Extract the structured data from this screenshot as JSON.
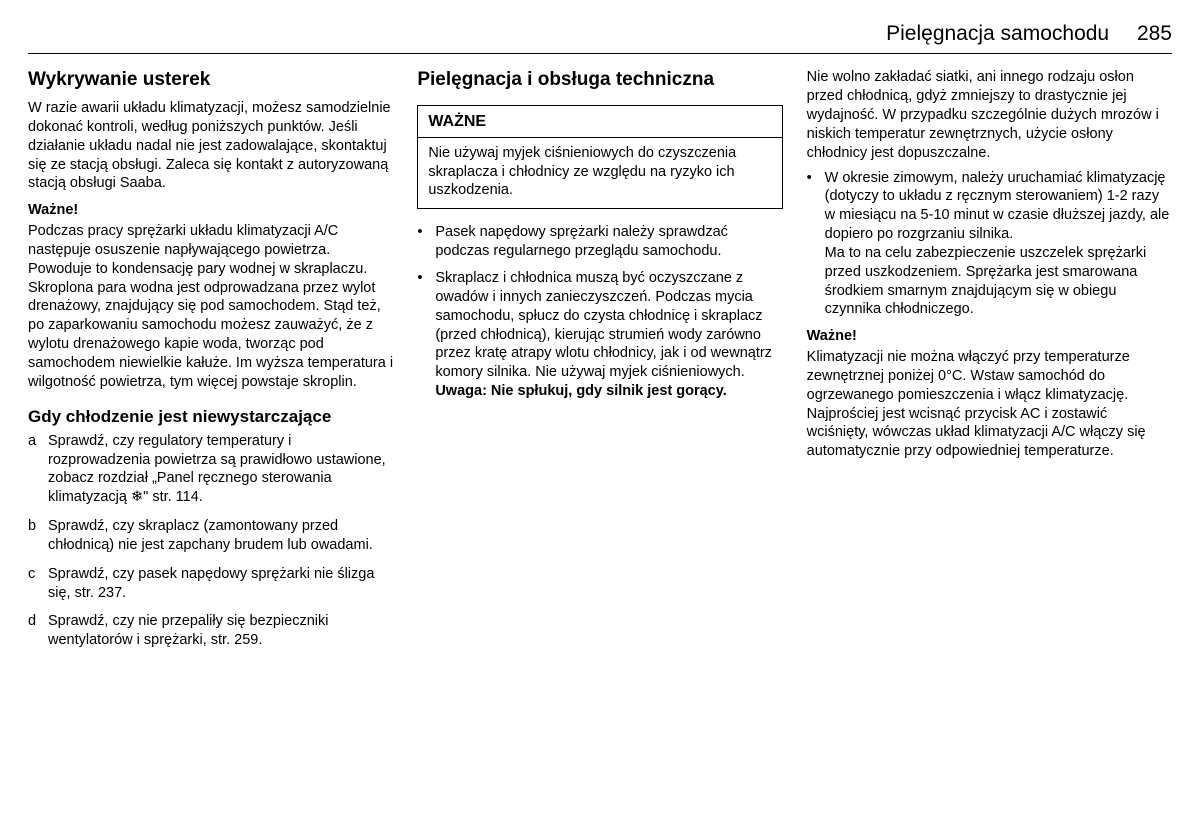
{
  "header": {
    "title": "Pielęgnacja samochodu",
    "page": "285"
  },
  "col1": {
    "h1": "Wykrywanie usterek",
    "p1": "W razie awarii układu klimatyzacji, możesz samodzielnie dokonać kontroli, według poniższych punktów. Jeśli działanie układu nadal nie jest zadowalające, skontaktuj się ze stacją obsługi. Zaleca się kontakt z autoryzowaną stacją obsługi Saaba.",
    "wazne1_label": "Ważne!",
    "wazne1_body": "Podczas pracy sprężarki układu klimatyzacji A/C następuje osuszenie napływającego powietrza. Powoduje to kondensację pary wodnej w skraplaczu. Skroplona para wodna jest odprowadzana przez wylot drenażowy, znajdujący się pod samochodem. Stąd też, po zaparkowaniu samochodu możesz zauważyć, że z wylotu drenażowego kapie woda, tworząc pod samochodem niewielkie kałuże. Im wyższa temperatura i wilgotność powietrza, tym więcej powstaje skroplin.",
    "h2": "Gdy chłodzenie jest niewystarczające",
    "items": [
      {
        "m": "a",
        "t": "Sprawdź, czy regulatory temperatury i rozprowadzenia powietrza są prawidłowo ustawione, zobacz rozdział „Panel ręcznego sterowania klimatyzacją ❄\" str. 114."
      },
      {
        "m": "b",
        "t": "Sprawdź, czy skraplacz (zamontowany przed chłodnicą) nie jest zapchany brudem lub owadami."
      },
      {
        "m": "c",
        "t": "Sprawdź, czy pasek napędowy sprężarki nie ślizga się, str. 237."
      },
      {
        "m": "d",
        "t": "Sprawdź, czy nie przepaliły się bezpieczniki wentylatorów i sprężarki, str. 259."
      }
    ]
  },
  "col2": {
    "h1": "Pielęgnacja i obsługa techniczna",
    "box": {
      "title": "WAŻNE",
      "body": "Nie używaj myjek ciśnieniowych do czyszczenia skraplacza i chłodnicy ze względu na ryzyko ich uszkodzenia."
    },
    "bullets": [
      {
        "t": "Pasek napędowy sprężarki należy sprawdzać podczas regularnego przeglądu samochodu."
      },
      {
        "t": "Skraplacz i chłodnica muszą być oczyszczane z owadów i innych zanieczyszczeń. Podczas mycia samochodu, spłucz do czysta chłodnicę i skraplacz (przed chłodnicą), kierując strumień wody zarówno przez kratę atrapy wlotu chłodnicy, jak i od wewnątrz komory silnika. Nie używaj myjek ciśnieniowych.",
        "bold": "Uwaga: Nie spłukuj, gdy silnik jest gorący."
      }
    ]
  },
  "col3": {
    "p1": "Nie wolno zakładać siatki, ani innego rodzaju osłon przed chłodnicą, gdyż zmniejszy to drastycznie jej wydajność. W przypadku szczególnie dużych mrozów i niskich temperatur zewnętrznych, użycie osłony chłodnicy jest dopuszczalne.",
    "bullets": [
      {
        "t": "W okresie zimowym, należy uruchamiać klimatyzację (dotyczy to układu z ręcznym sterowaniem) 1-2 razy w miesiącu na 5-10 minut w czasie dłuższej jazdy, ale dopiero po rozgrzaniu silnika.\nMa to na celu zabezpieczenie uszczelek sprężarki przed uszkodzeniem. Sprężarka jest smarowana środkiem smarnym znajdującym się w obiegu czynnika chłodniczego."
      }
    ],
    "wazne_label": "Ważne!",
    "wazne_body": "Klimatyzacji nie można włączyć przy temperaturze zewnętrznej poniżej 0°C. Wstaw samochód do ogrzewanego pomieszczenia i włącz klimatyzację. Najprościej jest wcisnąć przycisk AC i zostawić wciśnięty, wówczas układ klimatyzacji A/C włączy się automatycznie przy odpowiedniej temperaturze."
  }
}
